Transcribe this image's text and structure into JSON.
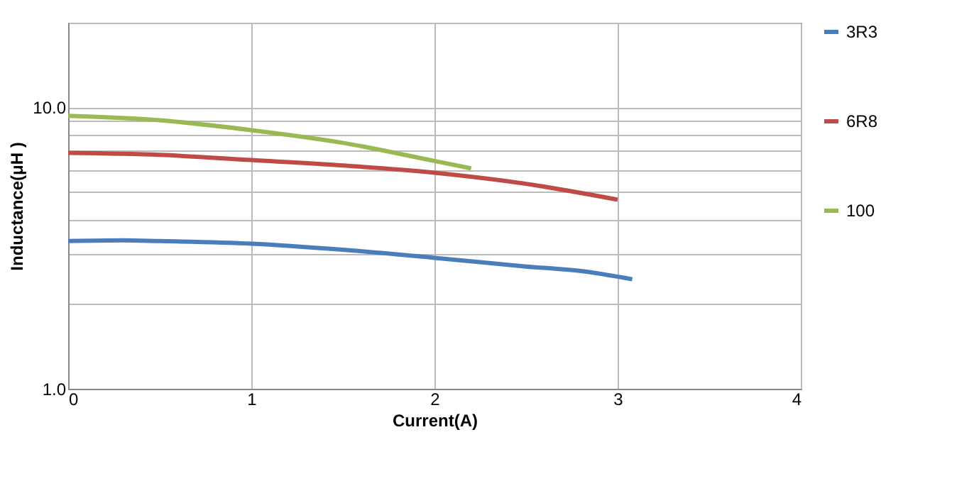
{
  "chart_data": {
    "type": "line",
    "xlabel": "Current(A)",
    "ylabel": "Inductance(μH )",
    "log": "y",
    "grid": true,
    "legend": "right",
    "line_style": "solid",
    "marker": "none",
    "xlim": [
      0,
      4
    ],
    "xticks": [
      0,
      1,
      2,
      3,
      4
    ],
    "ylim": [
      1,
      20
    ],
    "yticks": [
      {
        "value": 1,
        "label": "1.0"
      },
      {
        "value": 2,
        "label": null
      },
      {
        "value": 3,
        "label": null
      },
      {
        "value": 4,
        "label": null
      },
      {
        "value": 5,
        "label": null
      },
      {
        "value": 6,
        "label": null
      },
      {
        "value": 7,
        "label": null
      },
      {
        "value": 8,
        "label": null
      },
      {
        "value": 9,
        "label": null
      },
      {
        "value": 10,
        "label": "10.0"
      },
      {
        "value": 20,
        "label": null
      }
    ],
    "series": [
      {
        "name": "3R3",
        "color": "#4a7ebb",
        "x": [
          0,
          0.3,
          0.5,
          1,
          1.5,
          2,
          2.5,
          2.8,
          3.08
        ],
        "values": [
          3.35,
          3.37,
          3.35,
          3.28,
          3.12,
          2.92,
          2.72,
          2.62,
          2.45
        ]
      },
      {
        "name": "6R8",
        "color": "#be4b48",
        "x": [
          0,
          0.5,
          1,
          1.5,
          2,
          2.5,
          3
        ],
        "values": [
          6.89,
          6.78,
          6.5,
          6.22,
          5.86,
          5.35,
          4.7
        ]
      },
      {
        "name": "100",
        "color": "#98b954",
        "x": [
          0,
          0.5,
          1,
          1.5,
          2,
          2.2
        ],
        "values": [
          9.33,
          9.0,
          8.3,
          7.48,
          6.45,
          6.07
        ]
      }
    ]
  }
}
